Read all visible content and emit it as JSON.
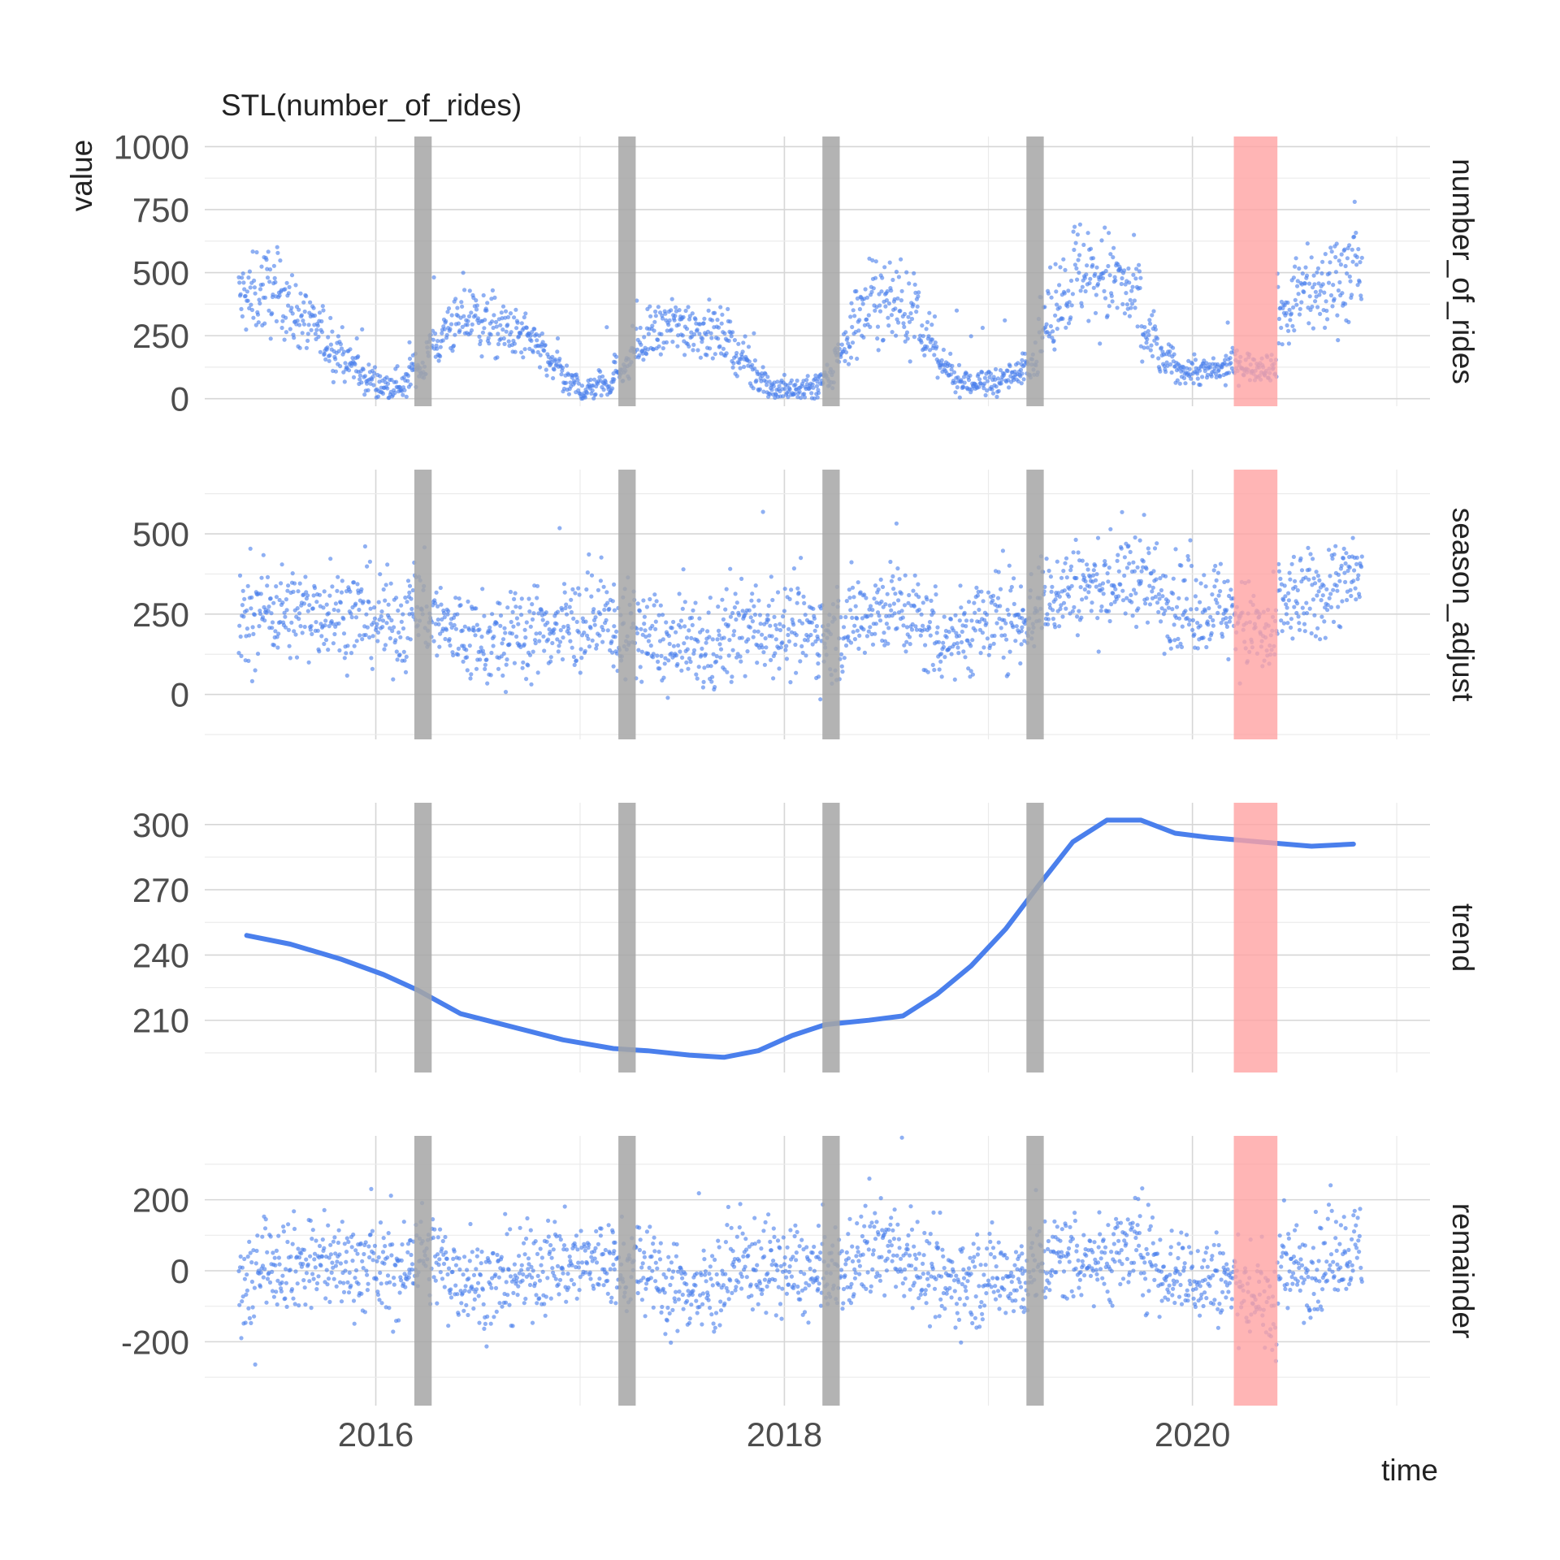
{
  "chart_data": {
    "type": "scatter",
    "title": "STL(number_of_rides)",
    "xlabel": "time",
    "ylabel": "value",
    "x_range": [
      "2015-03-01",
      "2021-03-01"
    ],
    "x_ticks": [
      {
        "date": "2016-01-01",
        "label": "2016"
      },
      {
        "date": "2018-01-01",
        "label": "2018"
      },
      {
        "date": "2020-01-01",
        "label": "2020"
      }
    ],
    "highlight_bands": {
      "gray": [
        {
          "from": "2016-03-10",
          "to": "2016-04-10"
        },
        {
          "from": "2017-03-10",
          "to": "2017-04-10"
        },
        {
          "from": "2018-03-10",
          "to": "2018-04-10"
        },
        {
          "from": "2019-03-10",
          "to": "2019-04-10"
        }
      ],
      "red": [
        {
          "from": "2020-03-15",
          "to": "2020-06-01"
        }
      ],
      "gray_color": "#a6a6a6",
      "red_color": "#ffa3a3"
    },
    "point_color": "#4a7fec",
    "grid": true,
    "panels": [
      {
        "name": "number_of_rides",
        "geom": "points",
        "ylim": [
          -30,
          1040
        ],
        "yticks": [
          0,
          250,
          500,
          750,
          1000
        ],
        "ytick_labels": [
          "0",
          "250",
          "500",
          "750",
          "1000"
        ],
        "points_by_month": [
          [
            "2015-05",
            400
          ],
          [
            "2015-06",
            430
          ],
          [
            "2015-07",
            410
          ],
          [
            "2015-08",
            330
          ],
          [
            "2015-09",
            270
          ],
          [
            "2015-10",
            200
          ],
          [
            "2015-11",
            140
          ],
          [
            "2015-12",
            80
          ],
          [
            "2016-01",
            50
          ],
          [
            "2016-02",
            60
          ],
          [
            "2016-03",
            120
          ],
          [
            "2016-04",
            220
          ],
          [
            "2016-05",
            290
          ],
          [
            "2016-06",
            320
          ],
          [
            "2016-07",
            300
          ],
          [
            "2016-08",
            270
          ],
          [
            "2016-09",
            250
          ],
          [
            "2016-10",
            210
          ],
          [
            "2016-11",
            130
          ],
          [
            "2016-12",
            55
          ],
          [
            "2017-01",
            40
          ],
          [
            "2017-02",
            60
          ],
          [
            "2017-03",
            120
          ],
          [
            "2017-04",
            200
          ],
          [
            "2017-05",
            260
          ],
          [
            "2017-06",
            290
          ],
          [
            "2017-07",
            290
          ],
          [
            "2017-08",
            270
          ],
          [
            "2017-09",
            250
          ],
          [
            "2017-10",
            170
          ],
          [
            "2017-11",
            90
          ],
          [
            "2017-12",
            40
          ],
          [
            "2018-01",
            30
          ],
          [
            "2018-02",
            50
          ],
          [
            "2018-03",
            80
          ],
          [
            "2018-04",
            200
          ],
          [
            "2018-05",
            330
          ],
          [
            "2018-06",
            390
          ],
          [
            "2018-07",
            380
          ],
          [
            "2018-08",
            350
          ],
          [
            "2018-09",
            220
          ],
          [
            "2018-10",
            120
          ],
          [
            "2018-11",
            70
          ],
          [
            "2018-12",
            60
          ],
          [
            "2019-01",
            70
          ],
          [
            "2019-02",
            90
          ],
          [
            "2019-03",
            150
          ],
          [
            "2019-04",
            300
          ],
          [
            "2019-05",
            430
          ],
          [
            "2019-06",
            510
          ],
          [
            "2019-07",
            490
          ],
          [
            "2019-08",
            470
          ],
          [
            "2019-09",
            400
          ],
          [
            "2019-10",
            250
          ],
          [
            "2019-11",
            150
          ],
          [
            "2019-12",
            110
          ],
          [
            "2020-01",
            110
          ],
          [
            "2020-02",
            110
          ],
          [
            "2020-03",
            140
          ],
          [
            "2020-04",
            130
          ],
          [
            "2020-05",
            130
          ],
          [
            "2020-06",
            340
          ],
          [
            "2020-07",
            430
          ],
          [
            "2020-08",
            420
          ],
          [
            "2020-09",
            490
          ],
          [
            "2020-10",
            500
          ]
        ]
      },
      {
        "name": "season_adjust",
        "geom": "points",
        "ylim": [
          -140,
          700
        ],
        "yticks": [
          0,
          250,
          500
        ],
        "ytick_labels": [
          "0",
          "250",
          "500"
        ],
        "points_by_month": [
          [
            "2015-05",
            220
          ],
          [
            "2015-06",
            270
          ],
          [
            "2015-07",
            260
          ],
          [
            "2015-08",
            250
          ],
          [
            "2015-09",
            260
          ],
          [
            "2015-10",
            255
          ],
          [
            "2015-11",
            250
          ],
          [
            "2015-12",
            240
          ],
          [
            "2016-01",
            230
          ],
          [
            "2016-02",
            220
          ],
          [
            "2016-03",
            280
          ],
          [
            "2016-04",
            230
          ],
          [
            "2016-05",
            200
          ],
          [
            "2016-06",
            180
          ],
          [
            "2016-07",
            160
          ],
          [
            "2016-08",
            160
          ],
          [
            "2016-09",
            190
          ],
          [
            "2016-10",
            200
          ],
          [
            "2016-11",
            210
          ],
          [
            "2016-12",
            215
          ],
          [
            "2017-01",
            215
          ],
          [
            "2017-02",
            230
          ],
          [
            "2017-03",
            200
          ],
          [
            "2017-04",
            200
          ],
          [
            "2017-05",
            170
          ],
          [
            "2017-06",
            140
          ],
          [
            "2017-07",
            150
          ],
          [
            "2017-08",
            140
          ],
          [
            "2017-09",
            170
          ],
          [
            "2017-10",
            200
          ],
          [
            "2017-11",
            215
          ],
          [
            "2017-12",
            210
          ],
          [
            "2018-01",
            200
          ],
          [
            "2018-02",
            195
          ],
          [
            "2018-03",
            175
          ],
          [
            "2018-04",
            200
          ],
          [
            "2018-05",
            250
          ],
          [
            "2018-06",
            270
          ],
          [
            "2018-07",
            270
          ],
          [
            "2018-08",
            250
          ],
          [
            "2018-09",
            200
          ],
          [
            "2018-10",
            175
          ],
          [
            "2018-11",
            190
          ],
          [
            "2018-12",
            215
          ],
          [
            "2019-01",
            235
          ],
          [
            "2019-02",
            240
          ],
          [
            "2019-03",
            250
          ],
          [
            "2019-04",
            300
          ],
          [
            "2019-05",
            330
          ],
          [
            "2019-06",
            340
          ],
          [
            "2019-07",
            330
          ],
          [
            "2019-08",
            340
          ],
          [
            "2019-09",
            370
          ],
          [
            "2019-10",
            340
          ],
          [
            "2019-11",
            300
          ],
          [
            "2019-12",
            280
          ],
          [
            "2020-01",
            270
          ],
          [
            "2020-02",
            280
          ],
          [
            "2020-03",
            250
          ],
          [
            "2020-04",
            210
          ],
          [
            "2020-05",
            160
          ],
          [
            "2020-06",
            290
          ],
          [
            "2020-07",
            300
          ],
          [
            "2020-08",
            300
          ],
          [
            "2020-09",
            350
          ],
          [
            "2020-10",
            360
          ]
        ]
      },
      {
        "name": "trend",
        "geom": "line",
        "ylim": [
          186,
          310
        ],
        "yticks": [
          210,
          240,
          270,
          300
        ],
        "ytick_labels": [
          "210",
          "240",
          "270",
          "300"
        ],
        "line": [
          [
            "2015-05-15",
            249
          ],
          [
            "2015-08-01",
            245
          ],
          [
            "2015-11-01",
            238
          ],
          [
            "2016-01-15",
            231
          ],
          [
            "2016-03-15",
            224
          ],
          [
            "2016-06-01",
            213
          ],
          [
            "2016-09-01",
            207
          ],
          [
            "2016-12-01",
            201
          ],
          [
            "2017-03-01",
            197
          ],
          [
            "2017-05-01",
            196
          ],
          [
            "2017-07-15",
            194
          ],
          [
            "2017-09-15",
            193
          ],
          [
            "2017-11-15",
            196
          ],
          [
            "2018-01-15",
            203
          ],
          [
            "2018-03-15",
            208
          ],
          [
            "2018-06-01",
            210
          ],
          [
            "2018-08-01",
            212
          ],
          [
            "2018-10-01",
            222
          ],
          [
            "2018-12-01",
            235
          ],
          [
            "2019-02-01",
            252
          ],
          [
            "2019-04-01",
            272
          ],
          [
            "2019-06-01",
            292
          ],
          [
            "2019-08-01",
            302
          ],
          [
            "2019-10-01",
            302
          ],
          [
            "2019-12-01",
            296
          ],
          [
            "2020-02-01",
            294
          ],
          [
            "2020-05-01",
            292
          ],
          [
            "2020-08-01",
            290
          ],
          [
            "2020-10-15",
            291
          ]
        ]
      },
      {
        "name": "remainder",
        "geom": "points",
        "ylim": [
          -380,
          380
        ],
        "yticks": [
          -200,
          0,
          200
        ],
        "ytick_labels": [
          "-200",
          "0",
          "200"
        ],
        "points_by_month": [
          [
            "2015-05",
            -60
          ],
          [
            "2015-06",
            40
          ],
          [
            "2015-07",
            30
          ],
          [
            "2015-08",
            20
          ],
          [
            "2015-09",
            20
          ],
          [
            "2015-10",
            20
          ],
          [
            "2015-11",
            20
          ],
          [
            "2015-12",
            10
          ],
          [
            "2016-01",
            0
          ],
          [
            "2016-02",
            -10
          ],
          [
            "2016-03",
            60
          ],
          [
            "2016-04",
            30
          ],
          [
            "2016-05",
            -10
          ],
          [
            "2016-06",
            -20
          ],
          [
            "2016-07",
            -40
          ],
          [
            "2016-08",
            -40
          ],
          [
            "2016-09",
            -10
          ],
          [
            "2016-10",
            10
          ],
          [
            "2016-11",
            20
          ],
          [
            "2016-12",
            20
          ],
          [
            "2017-01",
            20
          ],
          [
            "2017-02",
            30
          ],
          [
            "2017-03",
            0
          ],
          [
            "2017-04",
            10
          ],
          [
            "2017-05",
            -20
          ],
          [
            "2017-06",
            -50
          ],
          [
            "2017-07",
            -50
          ],
          [
            "2017-08",
            -60
          ],
          [
            "2017-09",
            -20
          ],
          [
            "2017-10",
            10
          ],
          [
            "2017-11",
            20
          ],
          [
            "2017-12",
            10
          ],
          [
            "2018-01",
            0
          ],
          [
            "2018-02",
            -10
          ],
          [
            "2018-03",
            -30
          ],
          [
            "2018-04",
            0
          ],
          [
            "2018-05",
            40
          ],
          [
            "2018-06",
            60
          ],
          [
            "2018-07",
            60
          ],
          [
            "2018-08",
            40
          ],
          [
            "2018-09",
            -10
          ],
          [
            "2018-10",
            -40
          ],
          [
            "2018-11",
            -30
          ],
          [
            "2018-12",
            -20
          ],
          [
            "2019-01",
            -10
          ],
          [
            "2019-02",
            -10
          ],
          [
            "2019-03",
            -10
          ],
          [
            "2019-04",
            30
          ],
          [
            "2019-05",
            40
          ],
          [
            "2019-06",
            40
          ],
          [
            "2019-07",
            30
          ],
          [
            "2019-08",
            40
          ],
          [
            "2019-09",
            70
          ],
          [
            "2019-10",
            40
          ],
          [
            "2019-11",
            0
          ],
          [
            "2019-12",
            -10
          ],
          [
            "2020-01",
            -20
          ],
          [
            "2020-02",
            -20
          ],
          [
            "2020-03",
            -40
          ],
          [
            "2020-04",
            -70
          ],
          [
            "2020-05",
            -110
          ],
          [
            "2020-06",
            0
          ],
          [
            "2020-07",
            10
          ],
          [
            "2020-08",
            10
          ],
          [
            "2020-09",
            60
          ],
          [
            "2020-10",
            60
          ]
        ]
      }
    ]
  }
}
